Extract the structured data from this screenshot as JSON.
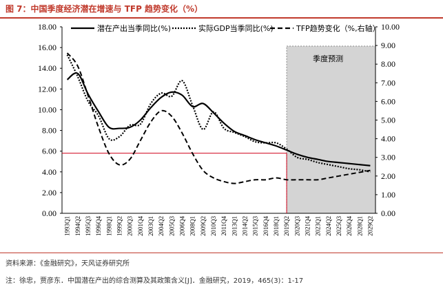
{
  "title": "图 7：中国季度经济潜在增速与 TFP 趋势变化（%）",
  "source": "资料来源：《金融研究》，天风证券研究所",
  "note": "注：徐忠，贾彦东．中国潜在产出的综合测算及其政策含义[J]．金融研究，2019，465(3)：1-17",
  "chart_data": {
    "type": "line",
    "forecast_label": "季度预测",
    "forecast_start": "2019Q2",
    "y_left": {
      "ticks": [
        "0.00",
        "2.00",
        "4.00",
        "6.00",
        "8.00",
        "10.00",
        "12.00",
        "14.00",
        "16.00",
        "18.00"
      ],
      "min": 0,
      "max": 18
    },
    "y_right": {
      "ticks": [
        "0.00",
        "1.00",
        "2.00",
        "3.00",
        "4.00",
        "5.00",
        "6.00",
        "7.00",
        "8.00",
        "9.00",
        "10.00"
      ],
      "min": 0,
      "max": 10
    },
    "x_ticks": [
      "1993Q1",
      "1994Q2",
      "1995Q3",
      "1996Q4",
      "1998Q1",
      "1999Q2",
      "2000Q3",
      "2001Q4",
      "2003Q1",
      "2004Q2",
      "2005Q3",
      "2006Q4",
      "2008Q1",
      "2009Q2",
      "2010Q3",
      "2011Q4",
      "2013Q1",
      "2014Q2",
      "2015Q3",
      "2016Q4",
      "2018Q1",
      "2019Q2",
      "2020Q3",
      "2021Q4",
      "2023Q1",
      "2024Q2",
      "2025Q3",
      "2026Q4",
      "2028Q1",
      "2029Q2"
    ],
    "reference_line": {
      "x": "2019Q2",
      "y": 5.8
    },
    "series": [
      {
        "name": "潜在产出当季同比(%)",
        "style": "solid",
        "axis": "left",
        "points": [
          [
            "1993Q1",
            12.9
          ],
          [
            "1994Q2",
            13.5
          ],
          [
            "1995Q3",
            11.5
          ],
          [
            "1996Q4",
            9.8
          ],
          [
            "1998Q1",
            8.3
          ],
          [
            "1999Q2",
            8.2
          ],
          [
            "2000Q3",
            8.3
          ],
          [
            "2001Q4",
            9.0
          ],
          [
            "2003Q1",
            10.2
          ],
          [
            "2004Q2",
            11.2
          ],
          [
            "2005Q3",
            11.7
          ],
          [
            "2006Q4",
            11.4
          ],
          [
            "2008Q1",
            10.3
          ],
          [
            "2009Q2",
            10.6
          ],
          [
            "2010Q3",
            9.7
          ],
          [
            "2011Q4",
            8.7
          ],
          [
            "2013Q1",
            7.9
          ],
          [
            "2014Q2",
            7.5
          ],
          [
            "2015Q3",
            7.1
          ],
          [
            "2016Q4",
            6.8
          ],
          [
            "2018Q1",
            6.5
          ],
          [
            "2019Q2",
            6.1
          ],
          [
            "2020Q3",
            5.7
          ],
          [
            "2021Q4",
            5.4
          ],
          [
            "2023Q1",
            5.2
          ],
          [
            "2024Q2",
            5.0
          ],
          [
            "2025Q3",
            4.9
          ],
          [
            "2026Q4",
            4.8
          ],
          [
            "2028Q1",
            4.7
          ],
          [
            "2029Q2",
            4.6
          ]
        ]
      },
      {
        "name": "实际GDP当季同比(%)",
        "style": "dotted",
        "axis": "left",
        "points": [
          [
            "1993Q1",
            15.3
          ],
          [
            "1994Q2",
            13.2
          ],
          [
            "1995Q3",
            10.8
          ],
          [
            "1996Q4",
            9.4
          ],
          [
            "1998Q1",
            7.2
          ],
          [
            "1999Q2",
            7.4
          ],
          [
            "2000Q3",
            8.5
          ],
          [
            "2001Q4",
            8.6
          ],
          [
            "2003Q1",
            10.6
          ],
          [
            "2004Q2",
            11.6
          ],
          [
            "2005Q3",
            11.3
          ],
          [
            "2006Q4",
            12.8
          ],
          [
            "2008Q1",
            10.4
          ],
          [
            "2009Q2",
            8.1
          ],
          [
            "2010Q3",
            9.8
          ],
          [
            "2011Q4",
            8.2
          ],
          [
            "2013Q1",
            7.8
          ],
          [
            "2014Q2",
            7.4
          ],
          [
            "2015Q3",
            6.9
          ],
          [
            "2016Q4",
            6.8
          ],
          [
            "2018Q1",
            6.8
          ],
          [
            "2019Q2",
            6.2
          ],
          [
            "2020Q3",
            5.4
          ],
          [
            "2021Q4",
            5.2
          ],
          [
            "2023Q1",
            4.9
          ],
          [
            "2024Q2",
            4.7
          ],
          [
            "2025Q3",
            4.5
          ],
          [
            "2026Q4",
            4.3
          ],
          [
            "2028Q1",
            4.2
          ],
          [
            "2029Q2",
            4.0
          ]
        ]
      },
      {
        "name": "TFP趋势变化（%,右轴）",
        "style": "dashed",
        "axis": "right",
        "points": [
          [
            "1993Q1",
            8.6
          ],
          [
            "1994Q2",
            7.9
          ],
          [
            "1995Q3",
            6.3
          ],
          [
            "1996Q4",
            4.6
          ],
          [
            "1998Q1",
            3.2
          ],
          [
            "1999Q2",
            2.6
          ],
          [
            "2000Q3",
            2.9
          ],
          [
            "2001Q4",
            3.9
          ],
          [
            "2003Q1",
            4.9
          ],
          [
            "2004Q2",
            5.5
          ],
          [
            "2005Q3",
            5.2
          ],
          [
            "2006Q4",
            4.3
          ],
          [
            "2008Q1",
            3.2
          ],
          [
            "2009Q2",
            2.3
          ],
          [
            "2010Q3",
            1.9
          ],
          [
            "2011Q4",
            1.7
          ],
          [
            "2013Q1",
            1.6
          ],
          [
            "2014Q2",
            1.7
          ],
          [
            "2015Q3",
            1.8
          ],
          [
            "2016Q4",
            1.8
          ],
          [
            "2018Q1",
            1.9
          ],
          [
            "2019Q2",
            1.8
          ],
          [
            "2020Q3",
            1.8
          ],
          [
            "2021Q4",
            1.8
          ],
          [
            "2023Q1",
            1.8
          ],
          [
            "2024Q2",
            1.9
          ],
          [
            "2025Q3",
            2.0
          ],
          [
            "2026Q4",
            2.1
          ],
          [
            "2028Q1",
            2.2
          ],
          [
            "2029Q2",
            2.3
          ]
        ]
      }
    ]
  }
}
